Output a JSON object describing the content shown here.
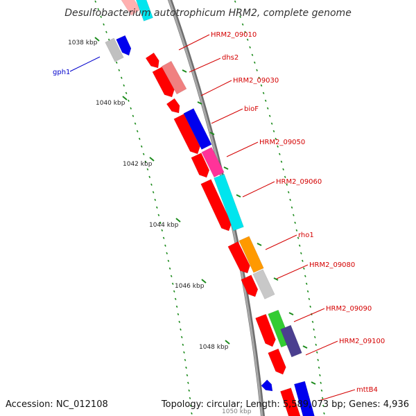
{
  "title": "Desulfobacterium autotrophicum HRM2, complete genome",
  "footer": {
    "accession": "Accession: NC_012108",
    "summary": "Topology: circular; Length: 5,589,073 bp; Genes: 4,936"
  },
  "ticks": [
    {
      "label": "1038 kbp"
    },
    {
      "label": "1040 kbp"
    },
    {
      "label": "1042 kbp"
    },
    {
      "label": "1044 kbp"
    },
    {
      "label": "1046 kbp"
    },
    {
      "label": "1048 kbp"
    },
    {
      "label": "1050 kbp"
    }
  ],
  "gene_labels": [
    {
      "text": "HRM2_09010",
      "color": "#d40000"
    },
    {
      "text": "dhs2",
      "color": "#d40000"
    },
    {
      "text": "HRM2_09030",
      "color": "#d40000"
    },
    {
      "text": "bioF",
      "color": "#d40000"
    },
    {
      "text": "HRM2_09050",
      "color": "#d40000"
    },
    {
      "text": "HRM2_09060",
      "color": "#d40000"
    },
    {
      "text": "rho1",
      "color": "#d40000"
    },
    {
      "text": "HRM2_09080",
      "color": "#d40000"
    },
    {
      "text": "HRM2_09090",
      "color": "#d40000"
    },
    {
      "text": "HRM2_09100",
      "color": "#d40000"
    },
    {
      "text": "mttB4",
      "color": "#d40000"
    },
    {
      "text": "gph1",
      "color": "#0000cc"
    }
  ],
  "colors": {
    "cds": "#ff0000",
    "backbone": "#8c8c8c",
    "tick": "#1a8a1a",
    "dhs2": "#f08080",
    "bioF": "#0000ee",
    "HRM2_09050": "#ff3399",
    "HRM2_09060": "#00e5ee",
    "rho1": "#ff9900",
    "HRM2_09080": "#c8c8c8",
    "HRM2_09090": "#33cc33",
    "HRM2_09100": "#4b3f8f",
    "mttB4": "#0000ee",
    "gph1": "#0000ee",
    "gph1_neighbor": "#c0c0c0"
  }
}
